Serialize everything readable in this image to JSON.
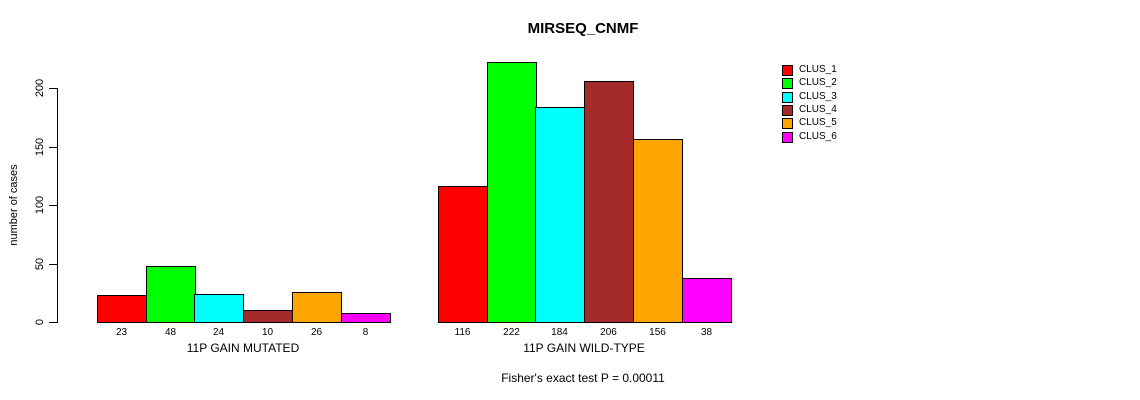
{
  "chart_data": {
    "type": "bar",
    "title": "MIRSEQ_CNMF",
    "xlabel": "",
    "ylabel": "number of cases",
    "ylim": [
      0,
      200
    ],
    "yticks": [
      0,
      50,
      100,
      150,
      200
    ],
    "grid": false,
    "legend_position": "right",
    "bar_value_labels": true,
    "categories": [
      "11P GAIN MUTATED",
      "11P GAIN WILD-TYPE"
    ],
    "series": [
      {
        "name": "CLUS_1",
        "color": "#FF0000",
        "values": [
          23,
          116
        ]
      },
      {
        "name": "CLUS_2",
        "color": "#00FF00",
        "values": [
          48,
          222
        ]
      },
      {
        "name": "CLUS_3",
        "color": "#00FFFF",
        "values": [
          24,
          184
        ]
      },
      {
        "name": "CLUS_4",
        "color": "#A52A2A",
        "values": [
          10,
          206
        ]
      },
      {
        "name": "CLUS_5",
        "color": "#FFA500",
        "values": [
          26,
          156
        ]
      },
      {
        "name": "CLUS_6",
        "color": "#FF00FF",
        "values": [
          8,
          38
        ]
      }
    ],
    "annotation": "Fisher's exact test P = 0.00011"
  }
}
